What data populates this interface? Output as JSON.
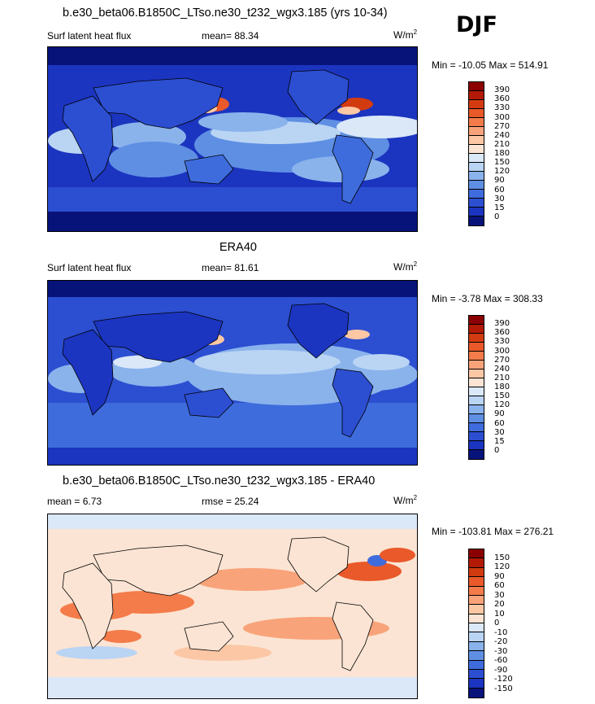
{
  "season": "DJF",
  "panels": [
    {
      "title": "b.e30_beta06.B1850C_LTso.ne30_t232_wgx3.185 (yrs 10-34)",
      "left_label": "Surf latent heat flux",
      "center_label": "mean=  88.34",
      "units": "W/m",
      "units_exp": "2",
      "minmax": "Min = -10.05 Max = 514.91",
      "levels": [
        "390",
        "360",
        "330",
        "300",
        "270",
        "240",
        "210",
        "180",
        "150",
        "120",
        "90",
        "60",
        "30",
        "15",
        "0"
      ],
      "colors": [
        "#8b0000",
        "#b31a06",
        "#d23b10",
        "#e9592a",
        "#f47c4a",
        "#f9a37a",
        "#fcc7a5",
        "#fbe4d3",
        "#dbe8f8",
        "#bad4f4",
        "#8ab3ec",
        "#5f8fe3",
        "#3f6cdc",
        "#2c4ed1",
        "#1b35c0",
        "#08137a"
      ],
      "map_data": {
        "type": "global-map",
        "field": "Surf latent heat flux",
        "pattern": "high flux over western boundary currents (Kuroshio, Gulf Stream) and winter-hemisphere subtropical oceans; low flux over land and polar regions"
      }
    },
    {
      "title": "ERA40",
      "left_label": "Surf latent heat flux",
      "center_label": "mean=  81.61",
      "units": "W/m",
      "units_exp": "2",
      "minmax": "Min =  -3.78 Max = 308.33",
      "levels": [
        "390",
        "360",
        "330",
        "300",
        "270",
        "240",
        "210",
        "180",
        "150",
        "120",
        "90",
        "60",
        "30",
        "15",
        "0"
      ],
      "colors": [
        "#8b0000",
        "#b31a06",
        "#d23b10",
        "#e9592a",
        "#f47c4a",
        "#f9a37a",
        "#fcc7a5",
        "#fbe4d3",
        "#dbe8f8",
        "#bad4f4",
        "#8ab3ec",
        "#5f8fe3",
        "#3f6cdc",
        "#2c4ed1",
        "#1b35c0",
        "#08137a"
      ],
      "map_data": {
        "type": "global-map",
        "field": "Surf latent heat flux",
        "pattern": "observational reference with weaker maxima over Kuroshio and Gulf Stream"
      }
    },
    {
      "title": "b.e30_beta06.B1850C_LTso.ne30_t232_wgx3.185 - ERA40",
      "left_label": "mean =   6.73",
      "center_label": "rmse =  25.24",
      "units": "W/m",
      "units_exp": "2",
      "minmax": "Min = -103.81 Max = 276.21",
      "levels": [
        "150",
        "120",
        "90",
        "60",
        "30",
        "20",
        "10",
        "0",
        "-10",
        "-20",
        "-30",
        "-60",
        "-90",
        "-120",
        "-150"
      ],
      "colors": [
        "#8b0000",
        "#b31a06",
        "#d23b10",
        "#e9592a",
        "#f47c4a",
        "#f9a37a",
        "#fcc7a5",
        "#fbe4d3",
        "#dbe8f8",
        "#bad4f4",
        "#8ab3ec",
        "#5f8fe3",
        "#3f6cdc",
        "#2c4ed1",
        "#1b35c0",
        "#08137a"
      ],
      "map_data": {
        "type": "global-map",
        "field": "difference model - observation",
        "pattern": "positive bias across subtropical oceans and western boundary currents, negative bias in the North Atlantic subpolar gyre"
      }
    }
  ]
}
